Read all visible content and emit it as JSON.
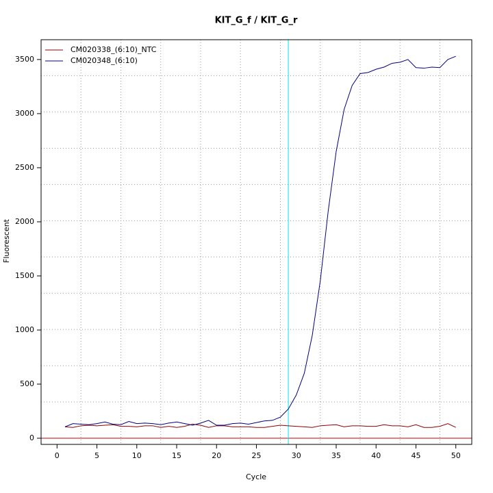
{
  "chart_data": {
    "type": "line",
    "title": "KIT_G_f / KIT_G_r",
    "x_label": "Cycle",
    "y_label": "Fluorescent",
    "x": [
      1,
      2,
      3,
      4,
      5,
      6,
      7,
      8,
      9,
      10,
      11,
      12,
      13,
      14,
      15,
      16,
      17,
      18,
      19,
      20,
      21,
      22,
      23,
      24,
      25,
      26,
      27,
      28,
      29,
      30,
      31,
      32,
      33,
      34,
      35,
      36,
      37,
      38,
      39,
      40,
      41,
      42,
      43,
      44,
      45,
      46,
      47,
      48,
      49,
      50
    ],
    "series": [
      {
        "name": "CM020338_(6:10)_NTC",
        "color": "#8b0000",
        "values": [
          105,
          100,
          115,
          120,
          115,
          120,
          125,
          110,
          110,
          105,
          115,
          115,
          100,
          110,
          100,
          110,
          130,
          120,
          100,
          115,
          115,
          105,
          105,
          105,
          100,
          100,
          110,
          120,
          115,
          110,
          105,
          100,
          115,
          120,
          125,
          105,
          115,
          115,
          110,
          110,
          125,
          115,
          115,
          105,
          125,
          100,
          100,
          110,
          135,
          100
        ]
      },
      {
        "name": "CM020348_(6:10)",
        "color": "#000080",
        "values": [
          105,
          135,
          130,
          125,
          135,
          150,
          130,
          125,
          155,
          135,
          140,
          135,
          125,
          140,
          150,
          135,
          120,
          140,
          165,
          120,
          120,
          135,
          140,
          130,
          145,
          160,
          165,
          195,
          270,
          400,
          600,
          950,
          1450,
          2100,
          2650,
          3040,
          3260,
          3370,
          3380,
          3410,
          3430,
          3465,
          3475,
          3500,
          3425,
          3420,
          3430,
          3425,
          3500,
          3530
        ]
      }
    ],
    "xlim": [
      -2,
      52
    ],
    "ylim": [
      -57,
      3683
    ],
    "xticks": [
      0,
      5,
      10,
      15,
      20,
      25,
      30,
      35,
      40,
      45,
      50
    ],
    "yticks": [
      0,
      500,
      1000,
      1500,
      2000,
      2500,
      3000,
      3500
    ],
    "xgrid": [
      3,
      8,
      13,
      18,
      23,
      28,
      33,
      38,
      43,
      48
    ],
    "ygrid": [
      335,
      670,
      1005,
      1340,
      1675,
      2010,
      2345,
      2680,
      3015,
      3350
    ],
    "threshold_x": 29,
    "threshold_color": "#00e5ee",
    "baseline_y": 0,
    "baseline_color": "#cc0000",
    "legend": "top-left"
  }
}
